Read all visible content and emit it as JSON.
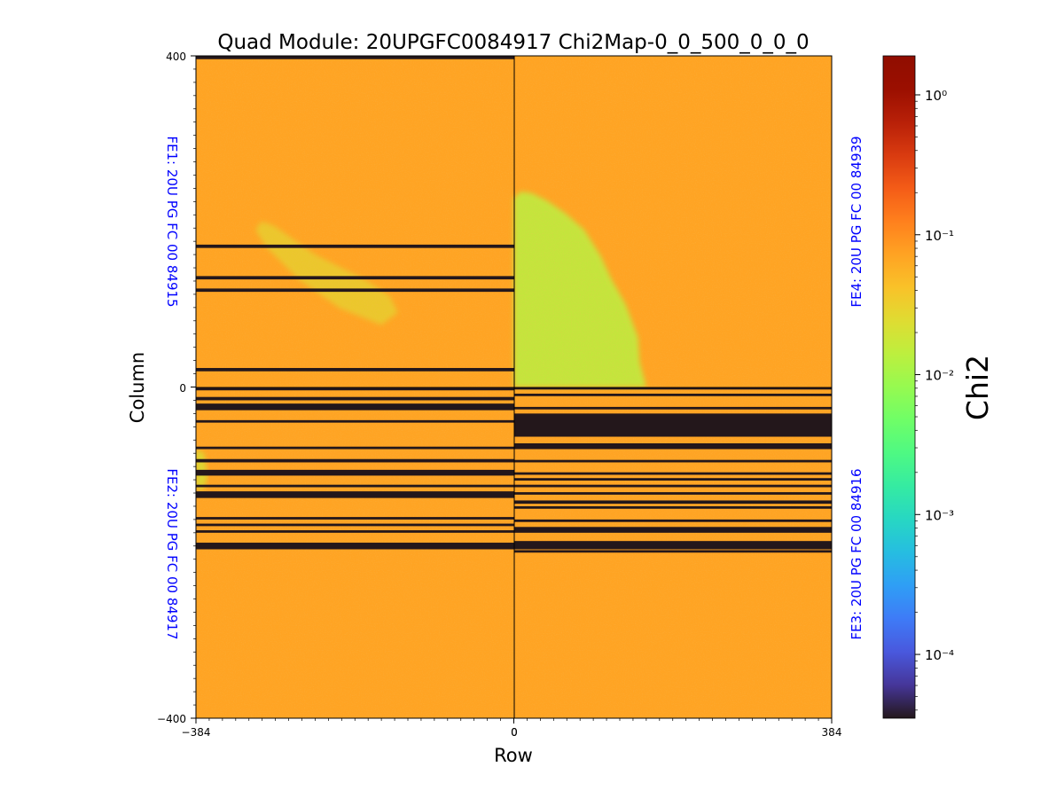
{
  "chart_data": {
    "type": "heatmap",
    "title": "Quad Module: 20UPGFC0084917 Chi2Map-0_0_500_0_0_0",
    "xlabel": "Row",
    "ylabel": "Column",
    "xlim": [
      -384,
      384
    ],
    "ylim": [
      -400,
      400
    ],
    "x_ticks": [
      "−384",
      "0",
      "0",
      "384"
    ],
    "y_ticks": [
      "400",
      "0",
      "−400"
    ],
    "colorbar": {
      "label": "Chi2",
      "scale": "log",
      "range": [
        3.5e-05,
        1.9
      ],
      "colormap": "turbo",
      "ticks": [
        {
          "value": 0.0001,
          "label": "10⁻⁴"
        },
        {
          "value": 0.001,
          "label": "10⁻³"
        },
        {
          "value": 0.01,
          "label": "10⁻²"
        },
        {
          "value": 0.1,
          "label": "10⁻¹"
        },
        {
          "value": 1,
          "label": "10⁰"
        }
      ]
    },
    "background_value": 0.07,
    "masked_value": 3.5e-05,
    "chips": [
      {
        "name": "FE1",
        "label": "FE1: 20U PG FC 00 84915",
        "position": "top-left",
        "x_range": [
          -384,
          0
        ],
        "y_range": [
          0,
          400
        ],
        "masked_rows": [
          [
            396,
            400
          ],
          [
            168,
            172
          ],
          [
            130,
            134
          ],
          [
            115,
            119
          ],
          [
            19,
            23
          ]
        ]
      },
      {
        "name": "FE4",
        "label": "FE4: 20U PG FC 00 84939",
        "position": "top-right",
        "x_range": [
          0,
          384
        ],
        "y_range": [
          0,
          400
        ],
        "masked_rows": []
      },
      {
        "name": "FE2",
        "label": "FE2: 20U PG FC 00 84917",
        "position": "bottom-left",
        "x_range": [
          -384,
          0
        ],
        "y_range": [
          -400,
          0
        ],
        "masked_rows": [
          [
            -4,
            0
          ],
          [
            -16,
            -12
          ],
          [
            -28,
            -20
          ],
          [
            -43,
            -40
          ],
          [
            -75,
            -72
          ],
          [
            -91,
            -87
          ],
          [
            -107,
            -100
          ],
          [
            -121,
            -118
          ],
          [
            -134,
            -126
          ],
          [
            -160,
            -157
          ],
          [
            -168,
            -165
          ],
          [
            -176,
            -173
          ],
          [
            -196,
            -188
          ]
        ]
      },
      {
        "name": "FE3",
        "label": "FE3: 20U PG FC 00 84916",
        "position": "bottom-right",
        "x_range": [
          0,
          384
        ],
        "y_range": [
          -400,
          0
        ],
        "masked_rows": [
          [
            -3,
            0
          ],
          [
            -11,
            -8
          ],
          [
            -27,
            -24
          ],
          [
            -60,
            -32
          ],
          [
            -75,
            -68
          ],
          [
            -91,
            -88
          ],
          [
            -106,
            -103
          ],
          [
            -113,
            -110
          ],
          [
            -121,
            -118
          ],
          [
            -130,
            -127
          ],
          [
            -141,
            -137
          ],
          [
            -147,
            -144
          ],
          [
            -163,
            -160
          ],
          [
            -176,
            -169
          ],
          [
            -196,
            -186
          ],
          [
            -200,
            -197
          ]
        ]
      }
    ],
    "low_chi2_regions": [
      {
        "chip": "FE4",
        "value": 0.014,
        "extent": "large wedge from top-left near x 0–155, y 0–235"
      },
      {
        "chip": "FE1",
        "value": 0.025,
        "extent": "diagonal band near x -300 to -140, y 70–200"
      },
      {
        "chip": "FE2",
        "value": 0.02,
        "extent": "left edge near x -384 to -370, y -110 to -120"
      }
    ]
  }
}
